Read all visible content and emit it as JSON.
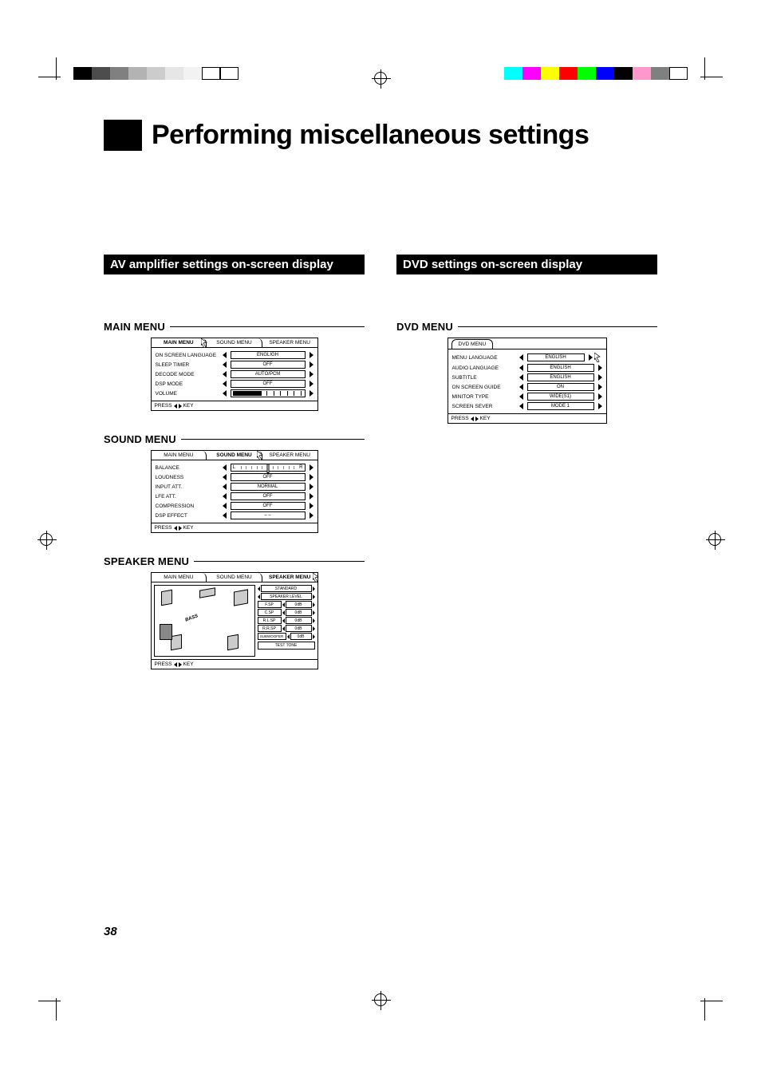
{
  "page_number": "38",
  "title": "Performing miscellaneous settings",
  "left_heading": "AV amplifier settings on-screen display",
  "right_heading": "DVD settings on-screen display",
  "sections": {
    "main_menu": "MAIN MENU",
    "sound_menu": "SOUND MENU",
    "speaker_menu": "SPEAKER MENU",
    "dvd_menu": "DVD MENU"
  },
  "osd_common": {
    "tabs": {
      "main": "MAIN MENU",
      "sound": "SOUND MENU",
      "speaker": "SPEAKER MENU"
    },
    "footer_press": "PRESS",
    "footer_key": "KEY"
  },
  "main_osd": {
    "rows": {
      "on_screen_language": {
        "label": "ON SCREEN LANGUAGE",
        "value": "ENGLIGH"
      },
      "sleep_timer": {
        "label": "SLEEP TIMER",
        "value": "OFF"
      },
      "decode_mode": {
        "label": "DECODE MODE",
        "value": "AUTO/PCM"
      },
      "dsp_mode": {
        "label": "DSP MODE",
        "value": "OFF"
      },
      "volume": {
        "label": "VOLUME"
      }
    }
  },
  "sound_osd": {
    "rows": {
      "balance": {
        "label": "BALANCE",
        "left": "L",
        "right": "R"
      },
      "loudness": {
        "label": "LOUDNESS",
        "value": "OFF"
      },
      "input_att": {
        "label": "INPUT ATT.",
        "value": "NORMAL"
      },
      "lfe_att": {
        "label": "LFE ATT.",
        "value": "OFF"
      },
      "compression": {
        "label": "COMPRESSION",
        "value": "OFF"
      },
      "dsp_effect": {
        "label": "DSP EFFECT",
        "value": "– –"
      }
    }
  },
  "speaker_osd": {
    "bass_label": "BASS",
    "standard": "STANDARD",
    "speaker_level": "SPEAKER LEVEL",
    "rows": {
      "f_sp": {
        "label": "F.SP",
        "value": "0dB"
      },
      "c_sp": {
        "label": "C.SP",
        "value": "0dB"
      },
      "rl_sp": {
        "label": "R.L.SP",
        "value": "0dB"
      },
      "rr_sp": {
        "label": "R.R.SP",
        "value": "0dB"
      },
      "subwoofer": {
        "label": "SUBWOOFER",
        "value": "0dB"
      }
    },
    "test_tone": "TEST TONE"
  },
  "dvd_osd": {
    "tab": "DVD MENU",
    "rows": {
      "menu_language": {
        "label": "MENU LANGUAGE",
        "value": "ENGLISH"
      },
      "audio_language": {
        "label": "AUDIO LANGUAGE",
        "value": "ENGLISH"
      },
      "subtitle": {
        "label": "SUBTITLE",
        "value": "ENGLISH"
      },
      "on_screen_guide": {
        "label": "ON SCREEN GUIDE",
        "value": "ON"
      },
      "minitor_type": {
        "label": "MINITOR TYPE",
        "value": "WIDE(S1)"
      },
      "screen_sever": {
        "label": "SCREEN SEVER",
        "value": "MODE 1"
      }
    }
  },
  "colorbar_left": [
    "#000000",
    "#4d4d4d",
    "#808080",
    "#b3b3b3",
    "#cccccc",
    "#e6e6e6",
    "#f2f2f2",
    "#ffffff",
    "#ffffff"
  ],
  "colorbar_right": [
    "#00ffff",
    "#ff00ff",
    "#ffff00",
    "#ff0000",
    "#00ff00",
    "#0000ff",
    "#000000",
    "#ff99cc",
    "#808080",
    "#ffffff"
  ]
}
